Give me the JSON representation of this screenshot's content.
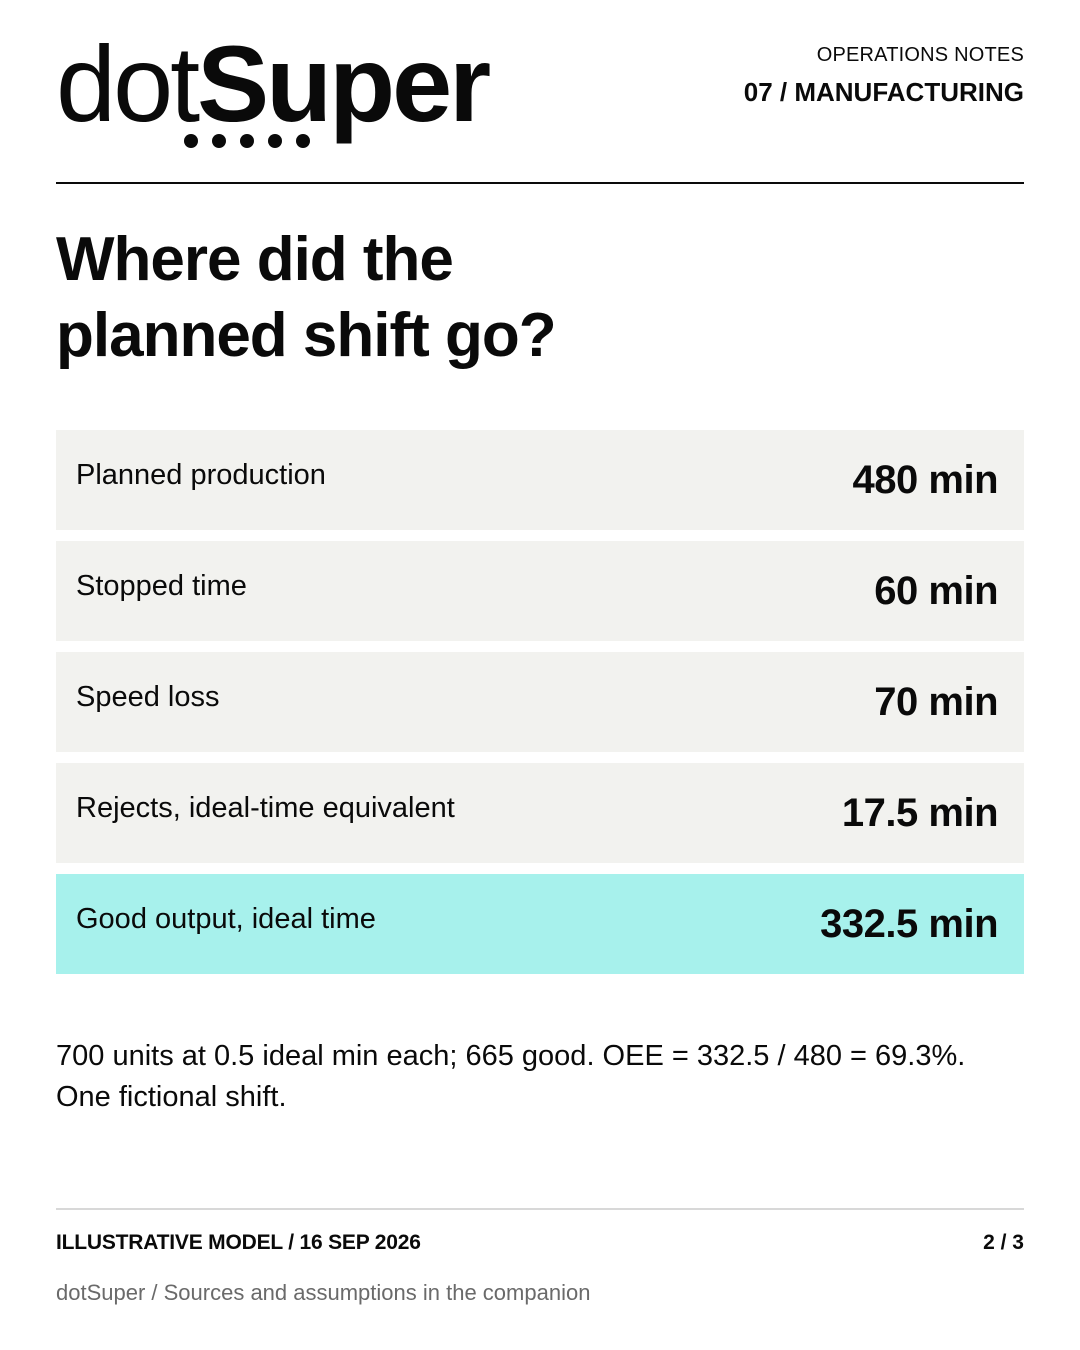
{
  "brand": {
    "light": "dot",
    "bold": "Super",
    "dot_count": 5
  },
  "header": {
    "series": "OPERATIONS NOTES",
    "issue": "07 / MANUFACTURING"
  },
  "headline": {
    "line1": "Where did the",
    "line2": "planned shift go?"
  },
  "rows": [
    {
      "label": "Planned production",
      "value": "480 min"
    },
    {
      "label": "Stopped time",
      "value": "60 min"
    },
    {
      "label": "Speed loss",
      "value": "70 min"
    },
    {
      "label": "Rejects, ideal-time equivalent",
      "value": "17.5 min"
    },
    {
      "label": "Good output, ideal time",
      "value": "332.5 min",
      "highlight": true
    }
  ],
  "note": "700 units at 0.5 ideal min each; 665 good. OEE = 332.5 / 480 = 69.3%. One fictional shift.",
  "footer": {
    "left": "ILLUSTRATIVE MODEL / 16 SEP 2026",
    "page": "2 / 3",
    "source": "dotSuper / Sources and assumptions in the companion"
  },
  "colors": {
    "text": "#0a0a0a",
    "row_bg": "#f2f2ef",
    "highlight_bg": "#a7f1ec",
    "muted_text": "#6a6a6a"
  }
}
